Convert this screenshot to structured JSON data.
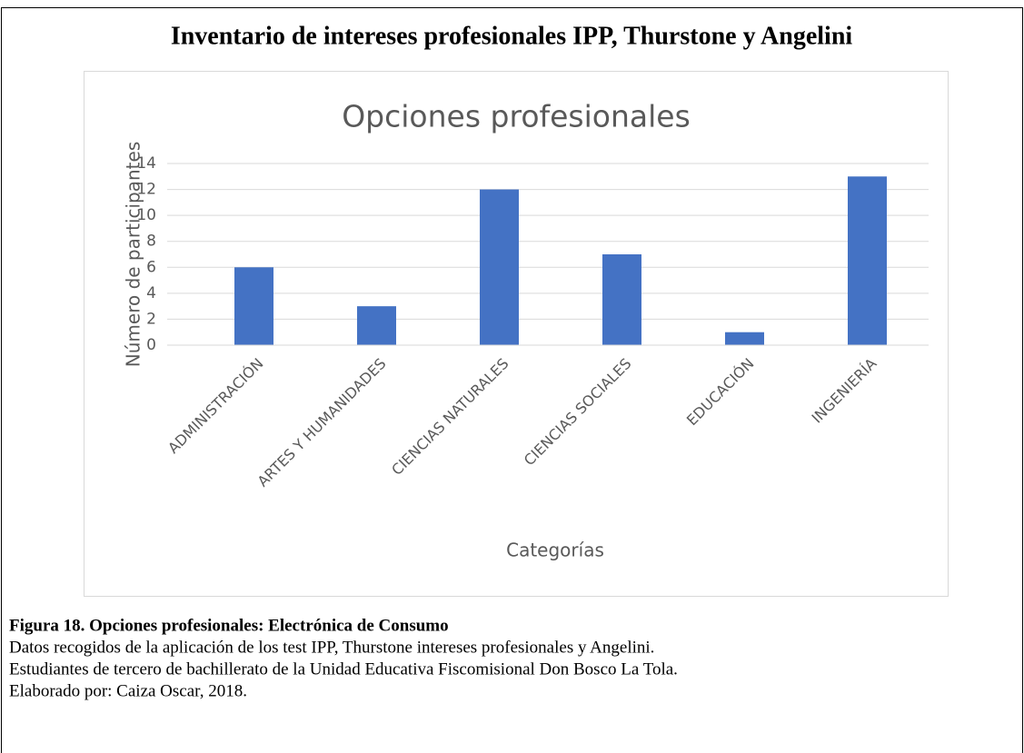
{
  "header": {
    "title": "Inventario de intereses profesionales IPP, Thurstone y Angelini"
  },
  "chart_data": {
    "type": "bar",
    "title": "Opciones profesionales",
    "x_label": "Categorías",
    "y_label": "Número de participantes",
    "categories": [
      "ADMINISTRACIÓN",
      "ARTES Y HUMANIDADES",
      "CIENCIAS NATURALES",
      "CIENCIAS SOCIALES",
      "EDUCACIÓN",
      "INGENIERÍA"
    ],
    "values": [
      6,
      3,
      12,
      7,
      1,
      13
    ],
    "color": "#4472c4",
    "ylim": [
      0,
      14
    ],
    "yticks": [
      0,
      2,
      4,
      6,
      8,
      10,
      12,
      14
    ],
    "grid": true
  },
  "caption": {
    "title": "Figura 18. Opciones profesionales: Electrónica de Consumo",
    "lines": [
      "Datos recogidos de la aplicación de los test IPP, Thurstone intereses profesionales y Angelini.",
      "Estudiantes de tercero de bachillerato de la Unidad Educativa Fiscomisional Don Bosco La Tola.",
      "Elaborado por: Caiza Oscar, 2018."
    ]
  }
}
